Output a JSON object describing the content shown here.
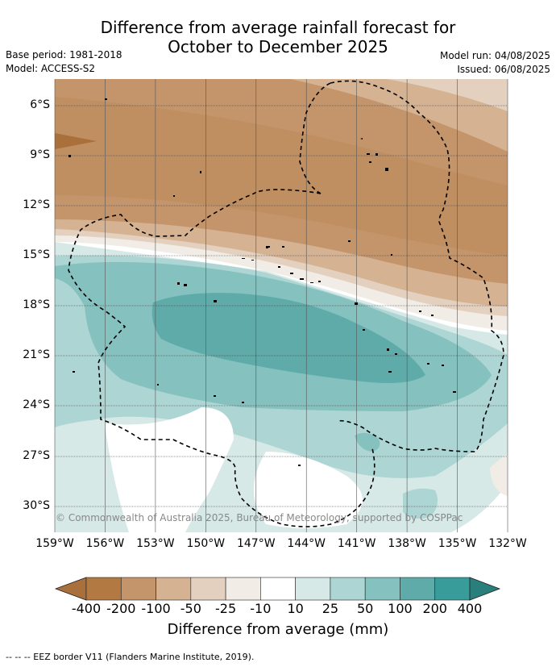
{
  "title_line1": "Difference from average rainfall forecast for",
  "title_line2": "October to December 2025",
  "meta_left": {
    "base_period": "Base period: 1981-2018",
    "model": "Model: ACCESS-S2"
  },
  "meta_right": {
    "model_run": "Model run: 04/08/2025",
    "issued": "Issued: 06/08/2025"
  },
  "copyright": "© Commonwealth of Australia 2025, Bureau of Meteorology, supported by COSPPac",
  "lat_labels": [
    "6°S",
    "9°S",
    "12°S",
    "15°S",
    "18°S",
    "21°S",
    "24°S",
    "27°S",
    "30°S"
  ],
  "lon_labels": [
    "159°W",
    "156°W",
    "153°W",
    "150°W",
    "147°W",
    "144°W",
    "141°W",
    "138°W",
    "135°W",
    "132°W"
  ],
  "colorbar": {
    "ticks": [
      "-400",
      "-200",
      "-100",
      "-50",
      "-25",
      "-10",
      "10",
      "25",
      "50",
      "100",
      "200",
      "400"
    ],
    "colors": [
      "#a9703c",
      "#b27a42",
      "#c4946a",
      "#d4b292",
      "#e4d0be",
      "#f1ece6",
      "#ffffff",
      "#d6e9e7",
      "#acd5d3",
      "#84c1bf",
      "#5eaba9",
      "#389d9a",
      "#2a7f7c"
    ],
    "title": "Difference from average (mm)"
  },
  "footer": "-- -- -- EEZ border V11 (Flanders Marine Institute, 2019)."
}
